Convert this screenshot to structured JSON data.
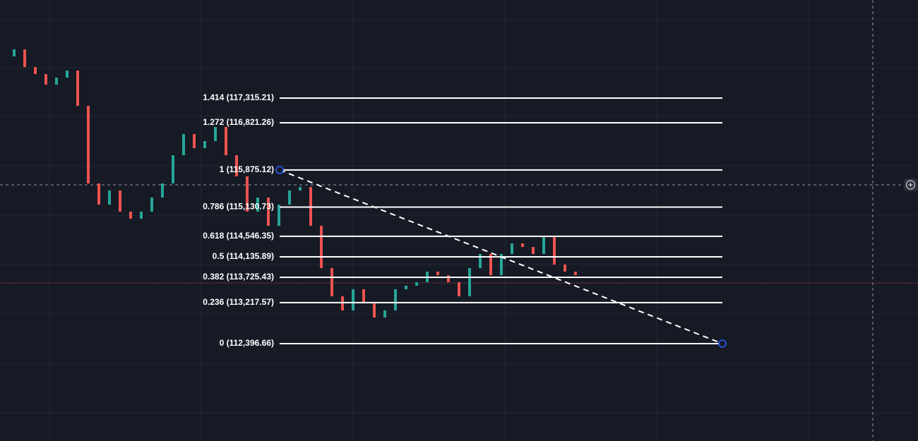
{
  "chart_data": {
    "type": "candlestick",
    "ylim": [
      110446,
      119280
    ],
    "closes": [
      118149,
      118291,
      117937,
      117796,
      117584,
      117725,
      117867,
      117160,
      115605,
      115181,
      115464,
      115040,
      114899,
      115040,
      115323,
      115605,
      116171,
      116595,
      116312,
      116453,
      116736,
      116171,
      115747,
      115040,
      115323,
      114757,
      115181,
      115464,
      115535,
      114757,
      113909,
      113344,
      113061,
      113485,
      113203,
      112920,
      113061,
      113485,
      113556,
      113627,
      113839,
      113768,
      113627,
      113344,
      113909,
      114192,
      113768,
      114192,
      114404,
      114333,
      114192,
      114545,
      113980,
      113839,
      113768
    ],
    "up_color": "#26a69a",
    "down_color": "#ef5350",
    "current_price": 113612,
    "current_price_color": "#ef5350",
    "fib_levels": [
      {
        "value": 117315.21,
        "label": "1.414 (117,315.21)"
      },
      {
        "value": 116821.26,
        "label": "1.272 (116,821.26)"
      },
      {
        "value": 115875.12,
        "label": "1 (115,875.12)"
      },
      {
        "value": 115130.73,
        "label": "0.786 (115,130.73)"
      },
      {
        "value": 114546.35,
        "label": "0.618 (114,546.35)"
      },
      {
        "value": 114135.89,
        "label": "0.5 (114,135.89)"
      },
      {
        "value": 113725.43,
        "label": "0.382 (113,725.43)"
      },
      {
        "value": 113217.57,
        "label": "0.236 (113,217.57)"
      },
      {
        "value": 112396.66,
        "label": "0 (112,396.66)"
      }
    ],
    "fib_color": "#ffffff"
  }
}
